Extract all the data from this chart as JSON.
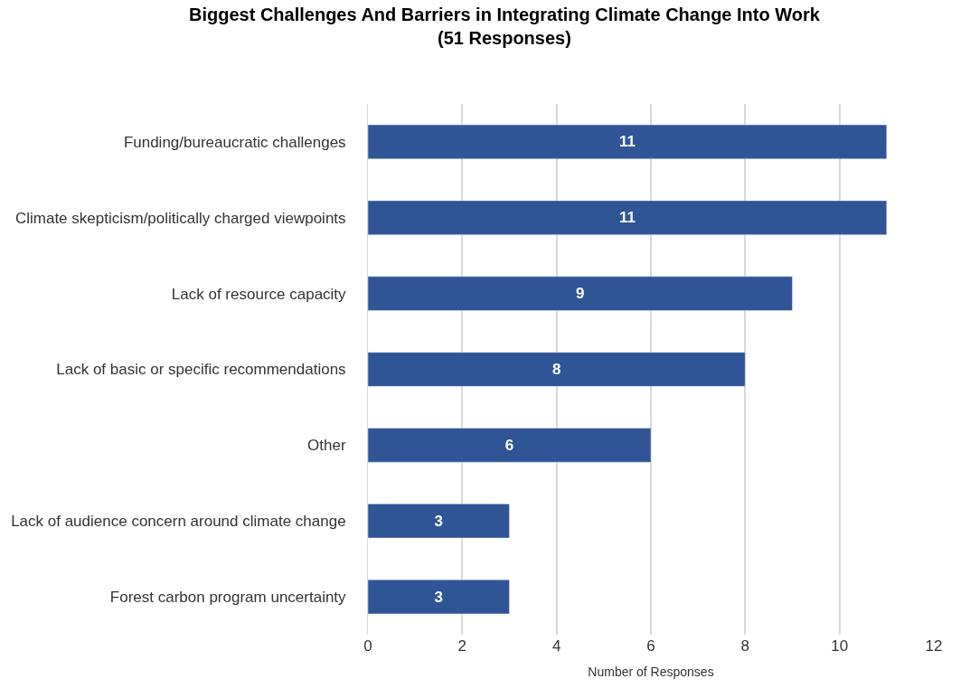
{
  "chart_data": {
    "type": "bar",
    "orientation": "horizontal",
    "title": "Biggest Challenges And Barriers in Integrating Climate Change Into Work\n(51 Responses)",
    "xlabel": "Number of Responses",
    "categories": [
      "Funding/bureaucratic challenges",
      "Climate skepticism/politically charged viewpoints",
      "Lack of resource capacity",
      "Lack of basic or specific recommendations",
      "Other",
      "Lack of audience concern around climate change",
      "Forest carbon program uncertainty"
    ],
    "values": [
      11,
      11,
      9,
      8,
      6,
      3,
      3
    ],
    "color": "#2f5597",
    "xlim": [
      0,
      12
    ],
    "xticks": [
      0,
      2,
      4,
      6,
      8,
      10,
      12
    ],
    "grid": "x",
    "data_labels": true,
    "legend": false
  }
}
